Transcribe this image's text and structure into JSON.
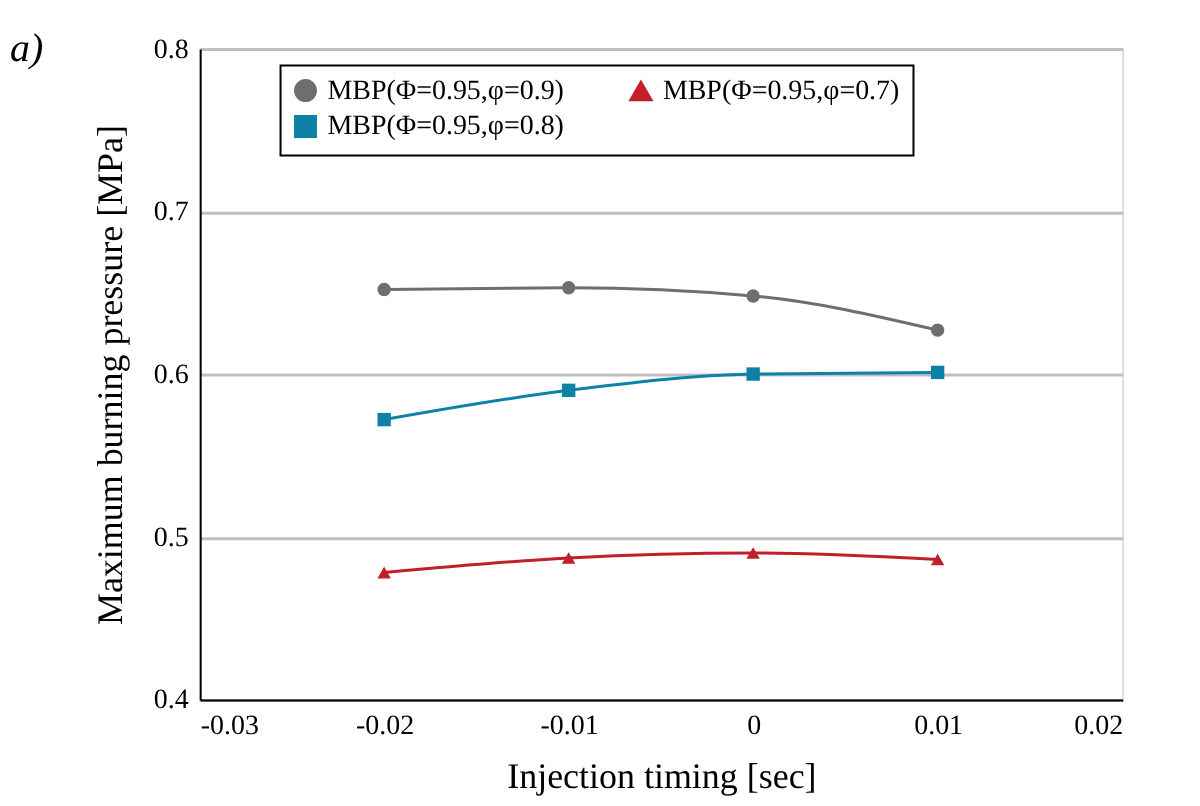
{
  "chart_data": {
    "type": "line",
    "xlabel": "Injection timing [sec]",
    "ylabel": "Maximum burning pressure [MPa]",
    "annotations": [
      "a)"
    ],
    "x": [
      -0.02,
      -0.01,
      0,
      0.01
    ],
    "series": [
      {
        "name": "MBP(Φ=0.95,φ=0.9)",
        "color": "#6e6e6e",
        "marker": "circle",
        "values": [
          0.652,
          0.653,
          0.648,
          0.627
        ]
      },
      {
        "name": "MBP(Φ=0.95,φ=0.8)",
        "color": "#0e82a6",
        "marker": "square",
        "values": [
          0.572,
          0.59,
          0.6,
          0.601
        ]
      },
      {
        "name": "MBP(Φ=0.95,φ=0.7)",
        "color": "#c0202a",
        "marker": "triangle",
        "values": [
          0.478,
          0.487,
          0.49,
          0.486
        ]
      }
    ],
    "xlim": [
      -0.03,
      0.02
    ],
    "xticks": [
      -0.03,
      -0.02,
      -0.01,
      0,
      0.01,
      0.02
    ],
    "ylim": [
      0.4,
      0.8
    ],
    "yticks": [
      0.4,
      0.5,
      0.6,
      0.7,
      0.8
    ],
    "grid": "y",
    "legend": "top",
    "line_style": "solid"
  }
}
